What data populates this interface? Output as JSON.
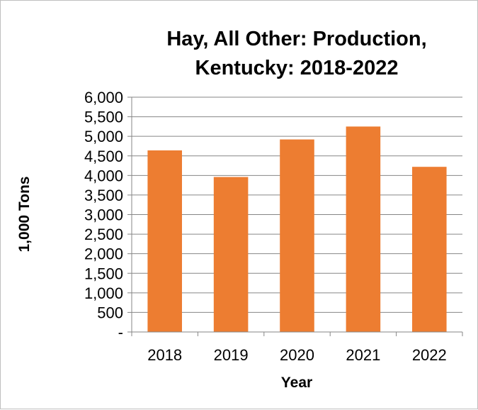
{
  "chart_data": {
    "type": "bar",
    "title_lines": [
      "Hay, All Other: Production,",
      "Kentucky: 2018-2022"
    ],
    "xlabel": "Year",
    "ylabel": "1,000 Tons",
    "categories": [
      "2018",
      "2019",
      "2020",
      "2021",
      "2022"
    ],
    "values": [
      4640,
      3960,
      4920,
      5250,
      4220
    ],
    "ylim": [
      0,
      6000
    ],
    "ytick_values": [
      0,
      500,
      1000,
      1500,
      2000,
      2500,
      3000,
      3500,
      4000,
      4500,
      5000,
      5500,
      6000
    ],
    "ytick_labels": [
      "-",
      "500",
      "1,000",
      "1,500",
      "2,000",
      "2,500",
      "3,000",
      "3,500",
      "4,000",
      "4,500",
      "5,000",
      "5,500",
      "6,000"
    ],
    "grid": true,
    "legend": "none",
    "bar_color": "#ed7d31",
    "grid_color": "#868686"
  }
}
